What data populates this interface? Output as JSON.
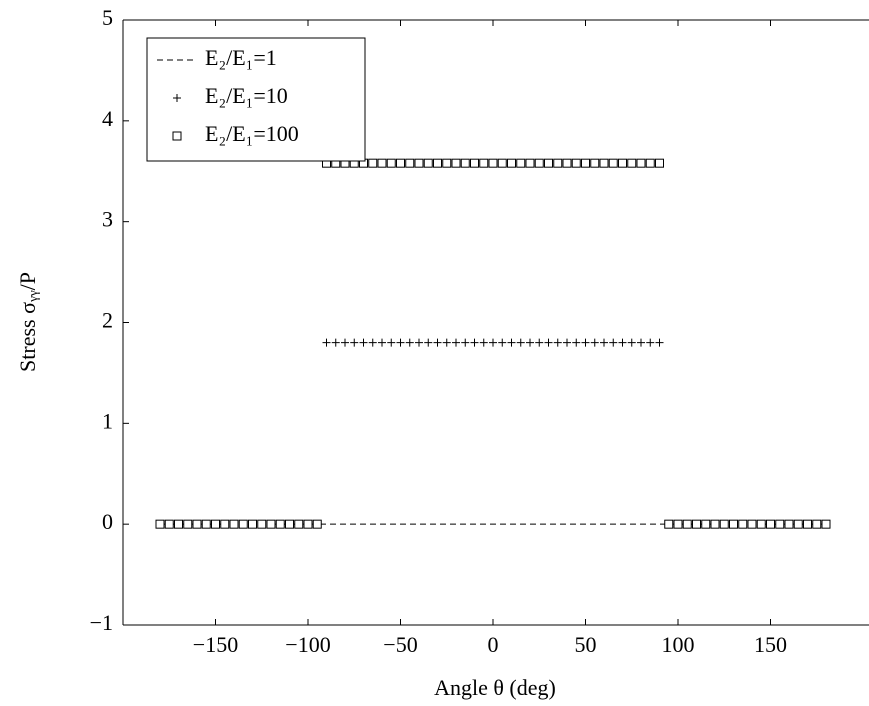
{
  "chart_data": {
    "type": "scatter",
    "xlabel": "Angle θ (deg)",
    "ylabel": "Stress σᵧᵧ/P",
    "x": [
      -180,
      -175,
      -170,
      -165,
      -160,
      -155,
      -150,
      -145,
      -140,
      -135,
      -130,
      -125,
      -120,
      -115,
      -110,
      -105,
      -100,
      -95,
      -90,
      -85,
      -80,
      -75,
      -70,
      -65,
      -60,
      -55,
      -50,
      -45,
      -40,
      -35,
      -30,
      -25,
      -20,
      -15,
      -10,
      -5,
      0,
      5,
      10,
      15,
      20,
      25,
      30,
      35,
      40,
      45,
      50,
      55,
      60,
      65,
      70,
      75,
      80,
      85,
      90,
      95,
      100,
      105,
      110,
      115,
      120,
      125,
      130,
      135,
      140,
      145,
      150,
      155,
      160,
      165,
      170,
      175,
      180
    ],
    "series": [
      {
        "name": "E₂/E₁=1",
        "color": "#000000",
        "marker": "dashed-line",
        "values": [
          0,
          0,
          0,
          0,
          0,
          0,
          0,
          0,
          0,
          0,
          0,
          0,
          0,
          0,
          0,
          0,
          0,
          0,
          0,
          0,
          0,
          0,
          0,
          0,
          0,
          0,
          0,
          0,
          0,
          0,
          0,
          0,
          0,
          0,
          0,
          0,
          0,
          0,
          0,
          0,
          0,
          0,
          0,
          0,
          0,
          0,
          0,
          0,
          0,
          0,
          0,
          0,
          0,
          0,
          0,
          0,
          0,
          0,
          0,
          0,
          0,
          0,
          0,
          0,
          0,
          0,
          0,
          0,
          0,
          0,
          0,
          0,
          0
        ]
      },
      {
        "name": "E₂/E₁=10",
        "color": "#000000",
        "marker": "plus",
        "values": [
          null,
          null,
          null,
          null,
          null,
          null,
          null,
          null,
          null,
          null,
          null,
          null,
          null,
          null,
          null,
          null,
          null,
          null,
          1.8,
          1.8,
          1.8,
          1.8,
          1.8,
          1.8,
          1.8,
          1.8,
          1.8,
          1.8,
          1.8,
          1.8,
          1.8,
          1.8,
          1.8,
          1.8,
          1.8,
          1.8,
          1.8,
          1.8,
          1.8,
          1.8,
          1.8,
          1.8,
          1.8,
          1.8,
          1.8,
          1.8,
          1.8,
          1.8,
          1.8,
          1.8,
          1.8,
          1.8,
          1.8,
          1.8,
          1.8,
          null,
          null,
          null,
          null,
          null,
          null,
          null,
          null,
          null,
          null,
          null,
          null,
          null,
          null,
          null,
          null,
          null,
          null
        ]
      },
      {
        "name": "E₂/E₁=100",
        "color": "#000000",
        "marker": "square",
        "values": [
          0,
          0,
          0,
          0,
          0,
          0,
          0,
          0,
          0,
          0,
          0,
          0,
          0,
          0,
          0,
          0,
          0,
          0,
          3.58,
          3.58,
          3.58,
          3.58,
          3.58,
          3.58,
          3.58,
          3.58,
          3.58,
          3.58,
          3.58,
          3.58,
          3.58,
          3.58,
          3.58,
          3.58,
          3.58,
          3.58,
          3.58,
          3.58,
          3.58,
          3.58,
          3.58,
          3.58,
          3.58,
          3.58,
          3.58,
          3.58,
          3.58,
          3.58,
          3.58,
          3.58,
          3.58,
          3.58,
          3.58,
          3.58,
          3.58,
          0,
          0,
          0,
          0,
          0,
          0,
          0,
          0,
          0,
          0,
          0,
          0,
          0,
          0,
          0,
          0,
          0,
          0
        ]
      }
    ],
    "xlim": [
      -200,
      200
    ],
    "xticks": [
      {
        "value": -150,
        "label": "−150"
      },
      {
        "value": -100,
        "label": "−100"
      },
      {
        "value": -50,
        "label": "−50"
      },
      0,
      50,
      100,
      150
    ],
    "ylim": [
      -1,
      5
    ],
    "yticks": [
      {
        "value": -1,
        "label": "−1"
      },
      0,
      1,
      2,
      3,
      4,
      5
    ],
    "grid": false,
    "legend": "upper left"
  }
}
